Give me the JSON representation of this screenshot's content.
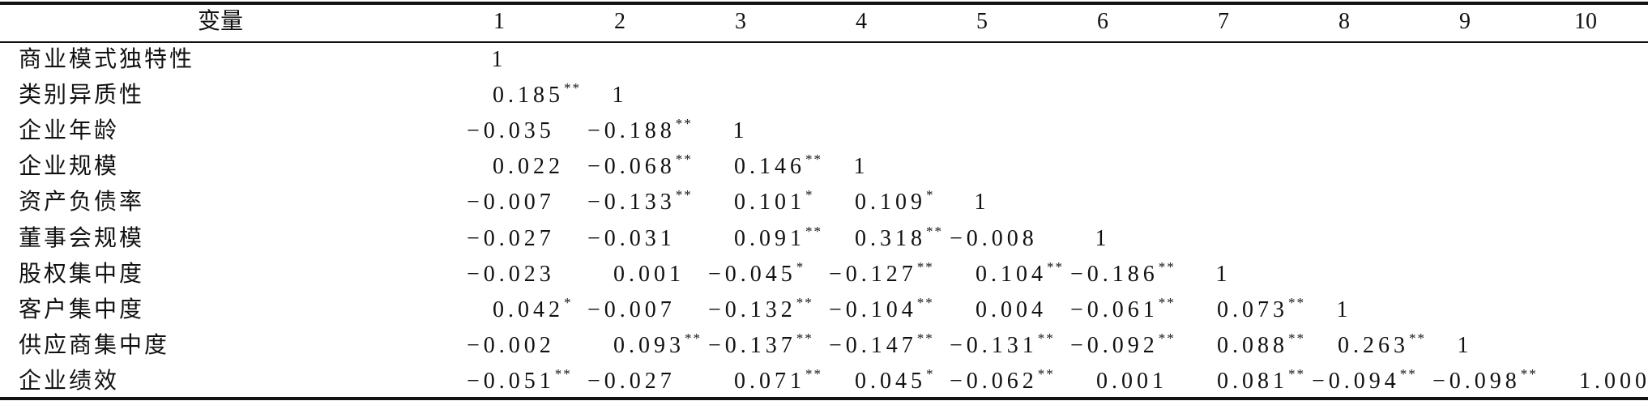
{
  "table": {
    "header": [
      "变量",
      "1",
      "2",
      "3",
      "4",
      "5",
      "6",
      "7",
      "8",
      "9",
      "10"
    ],
    "rows": [
      {
        "label": "商业模式独特性",
        "cells": [
          {
            "r": "1"
          }
        ]
      },
      {
        "label": "类别异质性",
        "cells": [
          {
            "r": "0.185",
            "sig": "**"
          },
          {
            "r": "1"
          }
        ]
      },
      {
        "label": "企业年龄",
        "cells": [
          {
            "r": "−0.035"
          },
          {
            "r": "−0.188",
            "sig": "**"
          },
          {
            "r": "1"
          }
        ]
      },
      {
        "label": "企业规模",
        "cells": [
          {
            "r": "0.022"
          },
          {
            "r": "−0.068",
            "sig": "**"
          },
          {
            "r": "0.146",
            "sig": "**"
          },
          {
            "r": "1"
          }
        ]
      },
      {
        "label": "资产负债率",
        "cells": [
          {
            "r": "−0.007"
          },
          {
            "r": "−0.133",
            "sig": "**"
          },
          {
            "r": "0.101",
            "sig": "*"
          },
          {
            "r": "0.109",
            "sig": "*"
          },
          {
            "r": "1"
          }
        ]
      },
      {
        "label": "董事会规模",
        "cells": [
          {
            "r": "−0.027"
          },
          {
            "r": "−0.031"
          },
          {
            "r": "0.091",
            "sig": "**"
          },
          {
            "r": "0.318",
            "sig": "**"
          },
          {
            "r": "−0.008"
          },
          {
            "r": "1"
          }
        ]
      },
      {
        "label": "股权集中度",
        "cells": [
          {
            "r": "−0.023"
          },
          {
            "r": "0.001"
          },
          {
            "r": "−0.045",
            "sig": "*"
          },
          {
            "r": "−0.127",
            "sig": "**"
          },
          {
            "r": "0.104",
            "sig": "**"
          },
          {
            "r": "−0.186",
            "sig": "**"
          },
          {
            "r": "1"
          }
        ]
      },
      {
        "label": "客户集中度",
        "cells": [
          {
            "r": "0.042",
            "sig": "*"
          },
          {
            "r": "−0.007"
          },
          {
            "r": "−0.132",
            "sig": "**"
          },
          {
            "r": "−0.104",
            "sig": "**"
          },
          {
            "r": "0.004"
          },
          {
            "r": "−0.061",
            "sig": "**"
          },
          {
            "r": "0.073",
            "sig": "**"
          },
          {
            "r": "1"
          }
        ]
      },
      {
        "label": "供应商集中度",
        "cells": [
          {
            "r": "−0.002"
          },
          {
            "r": "0.093",
            "sig": "**"
          },
          {
            "r": "−0.137",
            "sig": "**"
          },
          {
            "r": "−0.147",
            "sig": "**"
          },
          {
            "r": "−0.131",
            "sig": "**"
          },
          {
            "r": "−0.092",
            "sig": "**"
          },
          {
            "r": "0.088",
            "sig": "**"
          },
          {
            "r": "0.263",
            "sig": "**"
          },
          {
            "r": "1"
          }
        ]
      },
      {
        "label": "企业绩效",
        "cells": [
          {
            "r": "−0.051",
            "sig": "**"
          },
          {
            "r": "−0.027"
          },
          {
            "r": "0.071",
            "sig": "**"
          },
          {
            "r": "0.045",
            "sig": "*"
          },
          {
            "r": "−0.062",
            "sig": "**"
          },
          {
            "r": "0.001"
          },
          {
            "r": "0.081",
            "sig": "**"
          },
          {
            "r": "−0.094",
            "sig": "**"
          },
          {
            "r": "−0.098",
            "sig": "**"
          },
          {
            "r": "1.000"
          }
        ]
      }
    ]
  }
}
